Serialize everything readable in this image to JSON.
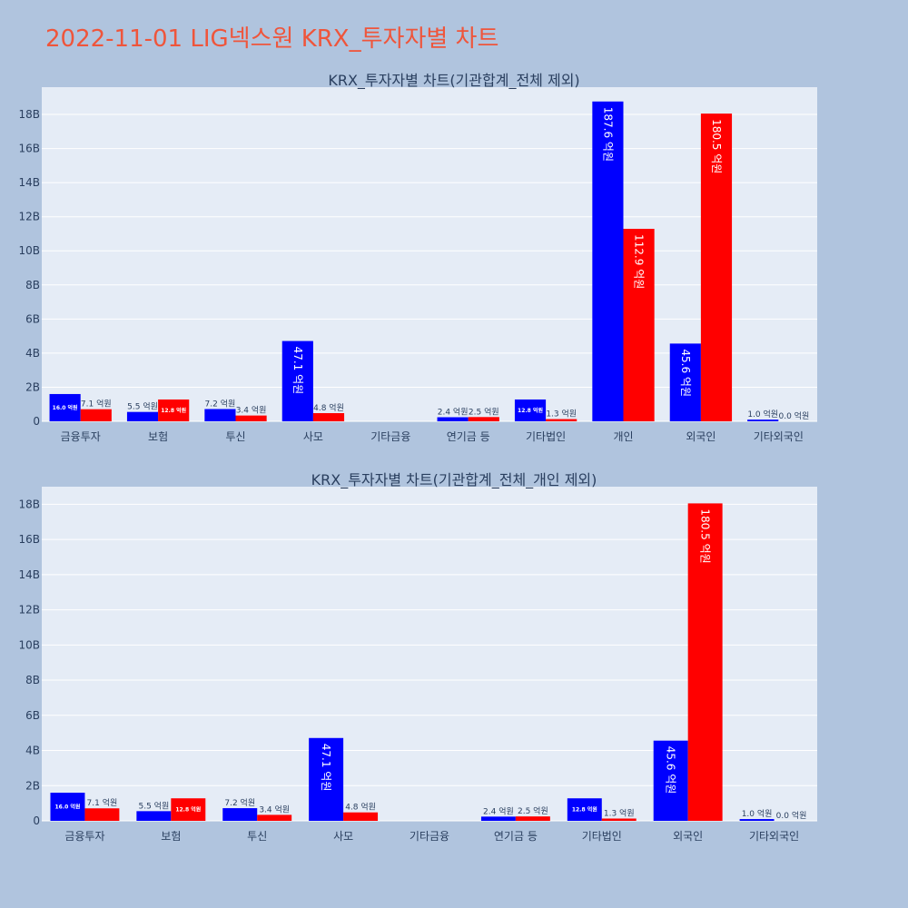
{
  "page_title": "2022-11-01 LIG넥스원 KRX_투자자별 차트",
  "colors": {
    "buy": "#0000ff",
    "sell": "#ff0000",
    "title": "#ef553b",
    "plot_bg": "#e5ecf6",
    "page_bg": "#b0c4de"
  },
  "chart_data": [
    {
      "type": "bar",
      "title": "KRX_투자자별 차트(기관합계_전체 제외)",
      "categories": [
        "금융투자",
        "보험",
        "투신",
        "사모",
        "기타금융",
        "연기금 등",
        "기타법인",
        "개인",
        "외국인",
        "기타외국인"
      ],
      "series": [
        {
          "values": [
            1.6,
            0.55,
            0.72,
            4.71,
            0,
            0.24,
            1.28,
            18.76,
            4.56,
            0.1
          ],
          "labels": [
            "16.0 억원",
            "5.5 억원",
            "7.2 억원",
            "47.1 억원",
            "",
            "2.4 억원",
            "12.8 억원",
            "187.6 억원",
            "45.6 억원",
            "1.0 억원"
          ]
        },
        {
          "values": [
            0.71,
            1.28,
            0.34,
            0.48,
            0,
            0.25,
            0.13,
            11.29,
            18.05,
            0.0
          ],
          "labels": [
            "7.1 억원",
            "12.8 억원",
            "3.4 억원",
            "4.8 억원",
            "",
            "2.5 억원",
            "1.3 억원",
            "112.9 억원",
            "180.5 억원",
            "0.0 억원"
          ]
        }
      ],
      "ylim": [
        0,
        19.6
      ],
      "yticks": [
        0,
        2,
        4,
        6,
        8,
        10,
        12,
        14,
        16,
        18
      ],
      "ytick_labels": [
        "0",
        "2B",
        "4B",
        "6B",
        "8B",
        "10B",
        "12B",
        "14B",
        "16B",
        "18B"
      ],
      "grid": true
    },
    {
      "type": "bar",
      "title": "KRX_투자자별 차트(기관합계_전체_개인 제외)",
      "categories": [
        "금융투자",
        "보험",
        "투신",
        "사모",
        "기타금융",
        "연기금 등",
        "기타법인",
        "외국인",
        "기타외국인"
      ],
      "series": [
        {
          "values": [
            1.6,
            0.55,
            0.72,
            4.71,
            0,
            0.24,
            1.28,
            4.56,
            0.1
          ],
          "labels": [
            "16.0 억원",
            "5.5 억원",
            "7.2 억원",
            "47.1 억원",
            "",
            "2.4 억원",
            "12.8 억원",
            "45.6 억원",
            "1.0 억원"
          ]
        },
        {
          "values": [
            0.71,
            1.28,
            0.34,
            0.48,
            0,
            0.25,
            0.13,
            18.05,
            0.0
          ],
          "labels": [
            "7.1 억원",
            "12.8 억원",
            "3.4 억원",
            "4.8 억원",
            "",
            "2.5 억원",
            "1.3 억원",
            "180.5 억원",
            "0.0 억원"
          ]
        }
      ],
      "ylim": [
        0,
        19.0
      ],
      "yticks": [
        0,
        2,
        4,
        6,
        8,
        10,
        12,
        14,
        16,
        18
      ],
      "ytick_labels": [
        "0",
        "2B",
        "4B",
        "6B",
        "8B",
        "10B",
        "12B",
        "14B",
        "16B",
        "18B"
      ],
      "grid": true
    }
  ]
}
